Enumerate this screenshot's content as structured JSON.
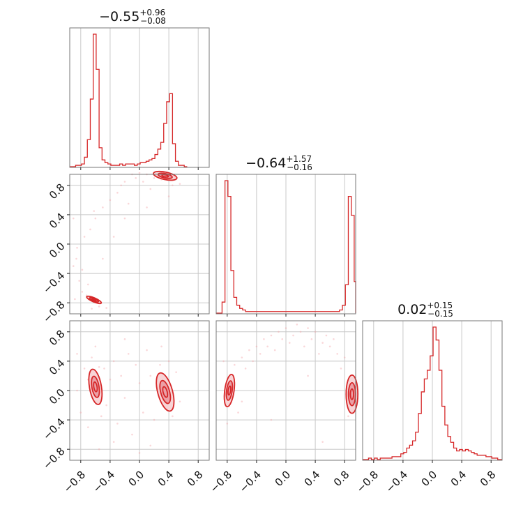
{
  "chart_data": {
    "type": "corner",
    "color": "#d62728",
    "parameter_count": 3,
    "axis_range": [
      -0.95,
      0.95
    ],
    "x_tick_labels": [
      "−0.8",
      "−0.4",
      "0.0",
      "0.4",
      "0.8"
    ],
    "y_tick_labels": [
      "0.8",
      "0.4",
      "0.0",
      "−0.4",
      "−0.8"
    ],
    "grid": true,
    "titles": [
      {
        "median": "−0.55",
        "plus": "+0.96",
        "minus": "−0.08"
      },
      {
        "median": "−0.64",
        "plus": "+1.57",
        "minus": "−0.16"
      },
      {
        "median": "0.02",
        "plus": "+0.15",
        "minus": "−0.15"
      }
    ],
    "marginals": [
      {
        "parameter": 1,
        "bin_width": 0.04,
        "bins": [
          {
            "x": -0.95,
            "density": 0.0
          },
          {
            "x": -0.91,
            "density": 0.0
          },
          {
            "x": -0.87,
            "density": 0.01
          },
          {
            "x": -0.83,
            "density": 0.01
          },
          {
            "x": -0.79,
            "density": 0.02
          },
          {
            "x": -0.75,
            "density": 0.07
          },
          {
            "x": -0.71,
            "density": 0.2
          },
          {
            "x": -0.67,
            "density": 0.5
          },
          {
            "x": -0.63,
            "density": 0.98
          },
          {
            "x": -0.59,
            "density": 0.72
          },
          {
            "x": -0.55,
            "density": 0.14
          },
          {
            "x": -0.51,
            "density": 0.05
          },
          {
            "x": -0.47,
            "density": 0.03
          },
          {
            "x": -0.43,
            "density": 0.02
          },
          {
            "x": -0.39,
            "density": 0.01
          },
          {
            "x": -0.35,
            "density": 0.01
          },
          {
            "x": -0.31,
            "density": 0.01
          },
          {
            "x": -0.27,
            "density": 0.02
          },
          {
            "x": -0.23,
            "density": 0.01
          },
          {
            "x": -0.19,
            "density": 0.02
          },
          {
            "x": -0.15,
            "density": 0.02
          },
          {
            "x": -0.11,
            "density": 0.02
          },
          {
            "x": -0.07,
            "density": 0.01
          },
          {
            "x": -0.03,
            "density": 0.02
          },
          {
            "x": 0.01,
            "density": 0.03
          },
          {
            "x": 0.05,
            "density": 0.03
          },
          {
            "x": 0.09,
            "density": 0.04
          },
          {
            "x": 0.13,
            "density": 0.05
          },
          {
            "x": 0.17,
            "density": 0.06
          },
          {
            "x": 0.21,
            "density": 0.09
          },
          {
            "x": 0.25,
            "density": 0.13
          },
          {
            "x": 0.29,
            "density": 0.18
          },
          {
            "x": 0.33,
            "density": 0.32
          },
          {
            "x": 0.37,
            "density": 0.48
          },
          {
            "x": 0.41,
            "density": 0.54
          },
          {
            "x": 0.45,
            "density": 0.17
          },
          {
            "x": 0.49,
            "density": 0.04
          },
          {
            "x": 0.53,
            "density": 0.01
          },
          {
            "x": 0.57,
            "density": 0.01
          },
          {
            "x": 0.61,
            "density": 0.0
          }
        ]
      },
      {
        "parameter": 2,
        "bin_width": 0.04,
        "bins": [
          {
            "x": -0.95,
            "density": 0.0
          },
          {
            "x": -0.91,
            "density": 0.0
          },
          {
            "x": -0.87,
            "density": 0.07
          },
          {
            "x": -0.83,
            "density": 0.84
          },
          {
            "x": -0.79,
            "density": 0.74
          },
          {
            "x": -0.75,
            "density": 0.27
          },
          {
            "x": -0.71,
            "density": 0.1
          },
          {
            "x": -0.67,
            "density": 0.05
          },
          {
            "x": -0.63,
            "density": 0.03
          },
          {
            "x": -0.59,
            "density": 0.02
          },
          {
            "x": -0.55,
            "density": 0.01
          },
          {
            "x": -0.51,
            "density": 0.01
          },
          {
            "x": -0.47,
            "density": 0.01
          },
          {
            "x": -0.43,
            "density": 0.01
          },
          {
            "x": -0.39,
            "density": 0.01
          },
          {
            "x": -0.35,
            "density": 0.01
          },
          {
            "x": -0.31,
            "density": 0.01
          },
          {
            "x": -0.27,
            "density": 0.01
          },
          {
            "x": -0.23,
            "density": 0.01
          },
          {
            "x": -0.19,
            "density": 0.01
          },
          {
            "x": -0.15,
            "density": 0.01
          },
          {
            "x": -0.11,
            "density": 0.01
          },
          {
            "x": -0.07,
            "density": 0.01
          },
          {
            "x": -0.03,
            "density": 0.01
          },
          {
            "x": 0.01,
            "density": 0.01
          },
          {
            "x": 0.05,
            "density": 0.01
          },
          {
            "x": 0.09,
            "density": 0.01
          },
          {
            "x": 0.13,
            "density": 0.01
          },
          {
            "x": 0.17,
            "density": 0.01
          },
          {
            "x": 0.21,
            "density": 0.01
          },
          {
            "x": 0.25,
            "density": 0.01
          },
          {
            "x": 0.29,
            "density": 0.01
          },
          {
            "x": 0.33,
            "density": 0.01
          },
          {
            "x": 0.37,
            "density": 0.01
          },
          {
            "x": 0.41,
            "density": 0.01
          },
          {
            "x": 0.45,
            "density": 0.01
          },
          {
            "x": 0.49,
            "density": 0.01
          },
          {
            "x": 0.53,
            "density": 0.01
          },
          {
            "x": 0.57,
            "density": 0.01
          },
          {
            "x": 0.61,
            "density": 0.01
          },
          {
            "x": 0.65,
            "density": 0.01
          },
          {
            "x": 0.69,
            "density": 0.01
          },
          {
            "x": 0.73,
            "density": 0.02
          },
          {
            "x": 0.77,
            "density": 0.05
          },
          {
            "x": 0.81,
            "density": 0.18
          },
          {
            "x": 0.85,
            "density": 0.74
          },
          {
            "x": 0.89,
            "density": 0.62
          },
          {
            "x": 0.93,
            "density": 0.2
          }
        ]
      },
      {
        "parameter": 3,
        "bin_width": 0.04,
        "bins": [
          {
            "x": -0.95,
            "density": 0.0
          },
          {
            "x": -0.91,
            "density": 0.0
          },
          {
            "x": -0.87,
            "density": 0.01
          },
          {
            "x": -0.83,
            "density": 0.0
          },
          {
            "x": -0.79,
            "density": 0.01
          },
          {
            "x": -0.75,
            "density": 0.0
          },
          {
            "x": -0.71,
            "density": 0.01
          },
          {
            "x": -0.67,
            "density": 0.01
          },
          {
            "x": -0.63,
            "density": 0.01
          },
          {
            "x": -0.59,
            "density": 0.01
          },
          {
            "x": -0.55,
            "density": 0.02
          },
          {
            "x": -0.51,
            "density": 0.02
          },
          {
            "x": -0.47,
            "density": 0.02
          },
          {
            "x": -0.43,
            "density": 0.04
          },
          {
            "x": -0.39,
            "density": 0.05
          },
          {
            "x": -0.35,
            "density": 0.08
          },
          {
            "x": -0.31,
            "density": 0.1
          },
          {
            "x": -0.27,
            "density": 0.13
          },
          {
            "x": -0.23,
            "density": 0.19
          },
          {
            "x": -0.19,
            "density": 0.32
          },
          {
            "x": -0.15,
            "density": 0.47
          },
          {
            "x": -0.11,
            "density": 0.56
          },
          {
            "x": -0.07,
            "density": 0.62
          },
          {
            "x": -0.03,
            "density": 0.72
          },
          {
            "x": 0.01,
            "density": 0.92
          },
          {
            "x": 0.05,
            "density": 0.83
          },
          {
            "x": 0.09,
            "density": 0.62
          },
          {
            "x": 0.13,
            "density": 0.37
          },
          {
            "x": 0.17,
            "density": 0.24
          },
          {
            "x": 0.21,
            "density": 0.16
          },
          {
            "x": 0.25,
            "density": 0.12
          },
          {
            "x": 0.29,
            "density": 0.08
          },
          {
            "x": 0.33,
            "density": 0.06
          },
          {
            "x": 0.37,
            "density": 0.07
          },
          {
            "x": 0.41,
            "density": 0.06
          },
          {
            "x": 0.45,
            "density": 0.07
          },
          {
            "x": 0.49,
            "density": 0.06
          },
          {
            "x": 0.53,
            "density": 0.05
          },
          {
            "x": 0.57,
            "density": 0.04
          },
          {
            "x": 0.61,
            "density": 0.03
          },
          {
            "x": 0.65,
            "density": 0.03
          },
          {
            "x": 0.69,
            "density": 0.03
          },
          {
            "x": 0.73,
            "density": 0.02
          },
          {
            "x": 0.77,
            "density": 0.02
          },
          {
            "x": 0.81,
            "density": 0.01
          },
          {
            "x": 0.85,
            "density": 0.01
          },
          {
            "x": 0.89,
            "density": 0.0
          },
          {
            "x": 0.93,
            "density": 0.0
          }
        ]
      }
    ],
    "joints": [
      {
        "x_parameter": 1,
        "y_parameter": 2,
        "modes": [
          {
            "cx": -0.62,
            "cy": -0.76,
            "sx": 0.05,
            "sy": 0.025,
            "rho": -0.8
          },
          {
            "cx": 0.35,
            "cy": 0.93,
            "sx": 0.08,
            "sy": 0.03,
            "rho": -0.5
          }
        ],
        "scatter_points": [
          [
            -0.9,
            -0.3
          ],
          [
            -0.86,
            -0.2
          ],
          [
            -0.82,
            -0.5
          ],
          [
            -0.78,
            -0.65
          ],
          [
            -0.75,
            0.1
          ],
          [
            -0.7,
            -0.55
          ],
          [
            -0.67,
            0.2
          ],
          [
            -0.6,
            0.35
          ],
          [
            -0.55,
            -0.85
          ],
          [
            -0.5,
            0.5
          ],
          [
            -0.45,
            -0.87
          ],
          [
            -0.4,
            0.6
          ],
          [
            -0.35,
            0.1
          ],
          [
            -0.3,
            0.7
          ],
          [
            -0.25,
            0.8
          ],
          [
            -0.2,
            0.85
          ],
          [
            -0.15,
            0.55
          ],
          [
            -0.1,
            0.95
          ],
          [
            -0.05,
            0.9
          ],
          [
            0.0,
            0.97
          ],
          [
            0.05,
            0.85
          ],
          [
            0.1,
            0.95
          ],
          [
            0.15,
            0.75
          ],
          [
            0.2,
            0.9
          ],
          [
            0.25,
            0.98
          ],
          [
            0.3,
            0.88
          ],
          [
            0.45,
            0.8
          ],
          [
            0.5,
            0.9
          ],
          [
            0.55,
            0.82
          ],
          [
            -0.88,
            -0.75
          ],
          [
            -0.72,
            -0.7
          ],
          [
            -0.65,
            -0.88
          ],
          [
            -0.9,
            0.35
          ],
          [
            -0.85,
            -0.05
          ],
          [
            -0.62,
            0.45
          ],
          [
            -0.2,
            0.35
          ],
          [
            0.1,
            0.5
          ],
          [
            0.4,
            0.65
          ],
          [
            -0.5,
            -0.2
          ],
          [
            -0.78,
            -0.35
          ]
        ]
      },
      {
        "x_parameter": 1,
        "y_parameter": 3,
        "modes": [
          {
            "cx": -0.6,
            "cy": 0.05,
            "sx": 0.045,
            "sy": 0.12,
            "rho": -0.4
          },
          {
            "cx": 0.35,
            "cy": -0.02,
            "sx": 0.06,
            "sy": 0.13,
            "rho": -0.5
          }
        ],
        "scatter_points": [
          [
            -0.85,
            0.5
          ],
          [
            -0.8,
            -0.3
          ],
          [
            -0.75,
            0.3
          ],
          [
            -0.7,
            -0.5
          ],
          [
            -0.65,
            0.45
          ],
          [
            -0.52,
            -0.35
          ],
          [
            -0.48,
            0.3
          ],
          [
            -0.45,
            -0.2
          ],
          [
            -0.4,
            0.15
          ],
          [
            -0.35,
            0.4
          ],
          [
            -0.3,
            -0.45
          ],
          [
            -0.25,
            0.2
          ],
          [
            -0.2,
            -0.1
          ],
          [
            -0.15,
            0.5
          ],
          [
            -0.1,
            -0.6
          ],
          [
            -0.05,
            0.35
          ],
          [
            0.0,
            0.1
          ],
          [
            0.05,
            -0.3
          ],
          [
            0.1,
            0.55
          ],
          [
            0.15,
            0.2
          ],
          [
            0.2,
            -0.4
          ],
          [
            0.28,
            0.35
          ],
          [
            0.45,
            -0.35
          ],
          [
            0.5,
            0.25
          ],
          [
            0.55,
            -0.15
          ],
          [
            -0.55,
            -0.8
          ],
          [
            -0.2,
            0.7
          ],
          [
            0.15,
            -0.75
          ],
          [
            -0.6,
            0.6
          ],
          [
            0.3,
            0.6
          ],
          [
            -0.85,
            0.0
          ],
          [
            -0.35,
            -0.7
          ],
          [
            0.0,
            -0.85
          ],
          [
            0.4,
            0.4
          ],
          [
            -0.7,
            0.15
          ],
          [
            -0.55,
            0.32
          ]
        ]
      },
      {
        "x_parameter": 2,
        "y_parameter": 3,
        "modes": [
          {
            "cx": -0.77,
            "cy": 0.0,
            "sx": 0.035,
            "sy": 0.11,
            "rho": 0.4
          },
          {
            "cx": 0.9,
            "cy": -0.05,
            "sx": 0.04,
            "sy": 0.13,
            "rho": 0.0
          }
        ],
        "scatter_points": [
          [
            -0.85,
            0.4
          ],
          [
            -0.8,
            -0.45
          ],
          [
            -0.7,
            0.35
          ],
          [
            -0.65,
            -0.3
          ],
          [
            -0.6,
            0.45
          ],
          [
            -0.55,
            0.3
          ],
          [
            -0.5,
            0.55
          ],
          [
            -0.45,
            0.4
          ],
          [
            -0.4,
            0.6
          ],
          [
            -0.35,
            0.5
          ],
          [
            -0.3,
            0.7
          ],
          [
            -0.25,
            0.6
          ],
          [
            -0.2,
            0.75
          ],
          [
            -0.15,
            0.55
          ],
          [
            -0.1,
            0.8
          ],
          [
            -0.05,
            0.7
          ],
          [
            0.0,
            0.85
          ],
          [
            0.05,
            0.65
          ],
          [
            0.1,
            0.75
          ],
          [
            0.15,
            0.9
          ],
          [
            0.2,
            0.8
          ],
          [
            0.25,
            0.6
          ],
          [
            0.3,
            0.85
          ],
          [
            0.35,
            0.7
          ],
          [
            0.4,
            0.8
          ],
          [
            0.45,
            0.5
          ],
          [
            0.5,
            0.65
          ],
          [
            0.55,
            0.75
          ],
          [
            0.6,
            0.6
          ],
          [
            0.65,
            0.7
          ],
          [
            0.7,
            0.5
          ],
          [
            0.75,
            0.3
          ],
          [
            0.8,
            0.45
          ],
          [
            0.85,
            -0.35
          ],
          [
            -0.6,
            -0.15
          ],
          [
            0.3,
            0.2
          ],
          [
            -0.2,
            -0.4
          ],
          [
            0.5,
            -0.7
          ]
        ]
      }
    ]
  }
}
